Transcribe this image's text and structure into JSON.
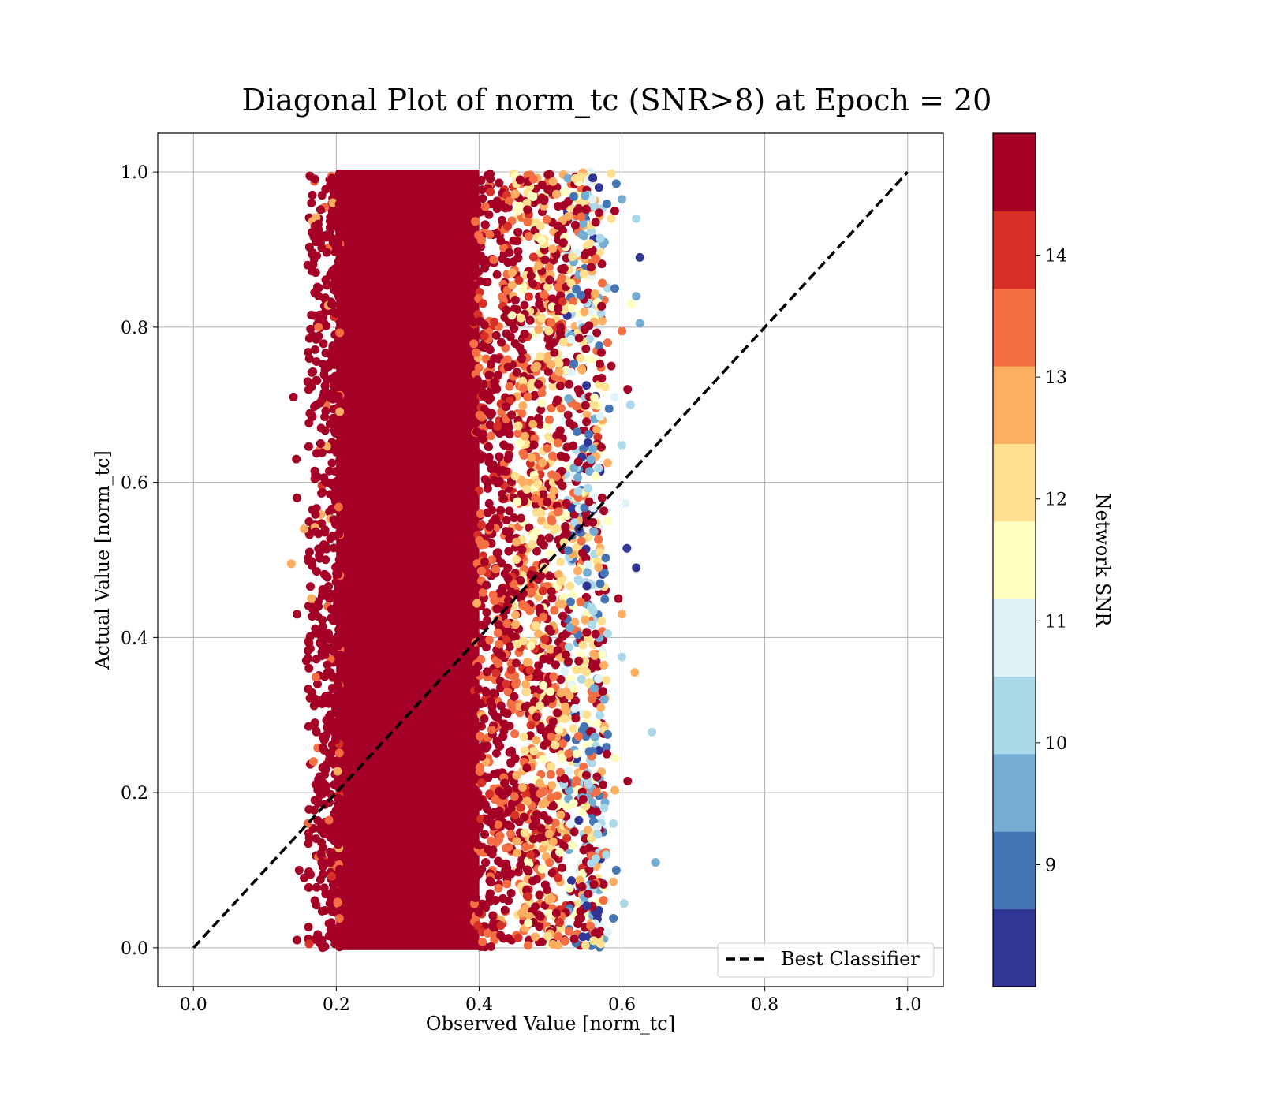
{
  "chart_data": {
    "type": "scatter",
    "title": "Diagonal Plot of norm_tc (SNR>8) at Epoch = 20",
    "xlabel": "Observed Value [norm_tc]",
    "ylabel": "Actual Value [norm_tc]",
    "xlim": [
      -0.05,
      1.05
    ],
    "ylim": [
      -0.05,
      1.05
    ],
    "xticks": [
      "0.0",
      "0.2",
      "0.4",
      "0.6",
      "0.8",
      "1.0"
    ],
    "yticks": [
      "0.0",
      "0.2",
      "0.4",
      "0.6",
      "0.8",
      "1.0"
    ],
    "grid": true,
    "legend": {
      "position": "lower-right",
      "entries": [
        "Best Classifier"
      ]
    },
    "reference_line": {
      "name": "Best Classifier",
      "style": "dashed",
      "color": "#000000",
      "points": [
        [
          0.0,
          0.0
        ],
        [
          1.0,
          1.0
        ]
      ]
    },
    "colorbar": {
      "label": "Network SNR",
      "range": [
        8.0,
        15.0
      ],
      "ticks": [
        "9",
        "10",
        "11",
        "12",
        "13",
        "14"
      ],
      "bands": [
        "#313695",
        "#4575b4",
        "#74add1",
        "#abd9e9",
        "#e0f3f8",
        "#ffffbf",
        "#fee090",
        "#fdae61",
        "#f46d43",
        "#d73027",
        "#a50026"
      ]
    },
    "dense_region": {
      "x": [
        0.2,
        0.4
      ],
      "y": [
        0.0,
        1.0
      ],
      "snr": "15+",
      "color": "#a50026"
    },
    "outliers": [
      {
        "x": 0.14,
        "y": 0.71,
        "snr": 14.5
      },
      {
        "x": 0.144,
        "y": 0.63,
        "snr": 14.5
      },
      {
        "x": 0.16,
        "y": 0.88,
        "snr": 14.5
      },
      {
        "x": 0.137,
        "y": 0.495,
        "snr": 12.8
      },
      {
        "x": 0.145,
        "y": 0.43,
        "snr": 14.5
      },
      {
        "x": 0.145,
        "y": 0.58,
        "snr": 14.5
      },
      {
        "x": 0.148,
        "y": 0.1,
        "snr": 14.5
      },
      {
        "x": 0.145,
        "y": 0.01,
        "snr": 14.5
      },
      {
        "x": 0.162,
        "y": 0.005,
        "snr": 14.0
      },
      {
        "x": 0.16,
        "y": 0.16,
        "snr": 13.5
      },
      {
        "x": 0.155,
        "y": 0.54,
        "snr": 12.8
      },
      {
        "x": 0.16,
        "y": 0.73,
        "snr": 14.5
      },
      {
        "x": 0.17,
        "y": 0.93,
        "snr": 14.5
      },
      {
        "x": 0.175,
        "y": 0.8,
        "snr": 13.5
      },
      {
        "x": 0.165,
        "y": 0.45,
        "snr": 13.0
      },
      {
        "x": 0.168,
        "y": 0.24,
        "snr": 13.5
      },
      {
        "x": 0.17,
        "y": 0.29,
        "snr": 14.5
      },
      {
        "x": 0.172,
        "y": 0.055,
        "snr": 14.5
      },
      {
        "x": 0.155,
        "y": 0.09,
        "snr": 14.5
      },
      {
        "x": 0.158,
        "y": 0.37,
        "snr": 14.5
      },
      {
        "x": 0.18,
        "y": 0.97,
        "snr": 14.5
      },
      {
        "x": 0.178,
        "y": 0.65,
        "snr": 14.5
      },
      {
        "x": 0.62,
        "y": 0.94,
        "snr": 9.8
      },
      {
        "x": 0.625,
        "y": 0.89,
        "snr": 8.3
      },
      {
        "x": 0.62,
        "y": 0.84,
        "snr": 9.5
      },
      {
        "x": 0.625,
        "y": 0.805,
        "snr": 9.3
      },
      {
        "x": 0.613,
        "y": 0.83,
        "snr": 11.6
      },
      {
        "x": 0.6,
        "y": 0.965,
        "snr": 9.5
      },
      {
        "x": 0.592,
        "y": 0.985,
        "snr": 8.5
      },
      {
        "x": 0.585,
        "y": 0.998,
        "snr": 12.4
      },
      {
        "x": 0.608,
        "y": 0.72,
        "snr": 14.5
      },
      {
        "x": 0.612,
        "y": 0.7,
        "snr": 10.4
      },
      {
        "x": 0.6,
        "y": 0.648,
        "snr": 9.8
      },
      {
        "x": 0.6,
        "y": 0.795,
        "snr": 13.3
      },
      {
        "x": 0.605,
        "y": 0.573,
        "snr": 11.0
      },
      {
        "x": 0.607,
        "y": 0.515,
        "snr": 8.3
      },
      {
        "x": 0.62,
        "y": 0.49,
        "snr": 8.3
      },
      {
        "x": 0.595,
        "y": 0.45,
        "snr": 14.5
      },
      {
        "x": 0.6,
        "y": 0.43,
        "snr": 12.6
      },
      {
        "x": 0.6,
        "y": 0.375,
        "snr": 9.8
      },
      {
        "x": 0.618,
        "y": 0.355,
        "snr": 12.8
      },
      {
        "x": 0.642,
        "y": 0.278,
        "snr": 10.4
      },
      {
        "x": 0.59,
        "y": 0.245,
        "snr": 11.2
      },
      {
        "x": 0.608,
        "y": 0.215,
        "snr": 14.5
      },
      {
        "x": 0.59,
        "y": 0.203,
        "snr": 12.8
      },
      {
        "x": 0.588,
        "y": 0.16,
        "snr": 9.8
      },
      {
        "x": 0.647,
        "y": 0.11,
        "snr": 9.3
      },
      {
        "x": 0.592,
        "y": 0.1,
        "snr": 8.5
      },
      {
        "x": 0.588,
        "y": 0.085,
        "snr": 13.0
      },
      {
        "x": 0.603,
        "y": 0.057,
        "snr": 10.4
      },
      {
        "x": 0.588,
        "y": 0.038,
        "snr": 8.5
      },
      {
        "x": 0.58,
        "y": 0.02,
        "snr": 11.0
      },
      {
        "x": 0.57,
        "y": 0.005,
        "snr": 12.4
      },
      {
        "x": 0.59,
        "y": 0.85,
        "snr": 8.5
      },
      {
        "x": 0.59,
        "y": 0.95,
        "snr": 14.5
      },
      {
        "x": 0.585,
        "y": 0.75,
        "snr": 14.5
      },
      {
        "x": 0.58,
        "y": 0.78,
        "snr": 13.3
      },
      {
        "x": 0.582,
        "y": 0.695,
        "snr": 8.5
      },
      {
        "x": 0.59,
        "y": 0.71,
        "snr": 10.8
      },
      {
        "x": 0.58,
        "y": 0.55,
        "snr": 11.3
      },
      {
        "x": 0.58,
        "y": 0.405,
        "snr": 10.4
      },
      {
        "x": 0.575,
        "y": 0.32,
        "snr": 9.5
      },
      {
        "x": 0.578,
        "y": 0.345,
        "snr": 12.4
      },
      {
        "x": 0.58,
        "y": 0.275,
        "snr": 8.5
      },
      {
        "x": 0.575,
        "y": 0.18,
        "snr": 10.4
      },
      {
        "x": 0.578,
        "y": 0.12,
        "snr": 9.8
      },
      {
        "x": 0.58,
        "y": 0.625,
        "snr": 12.8
      },
      {
        "x": 0.585,
        "y": 0.94,
        "snr": 12.4
      }
    ]
  }
}
